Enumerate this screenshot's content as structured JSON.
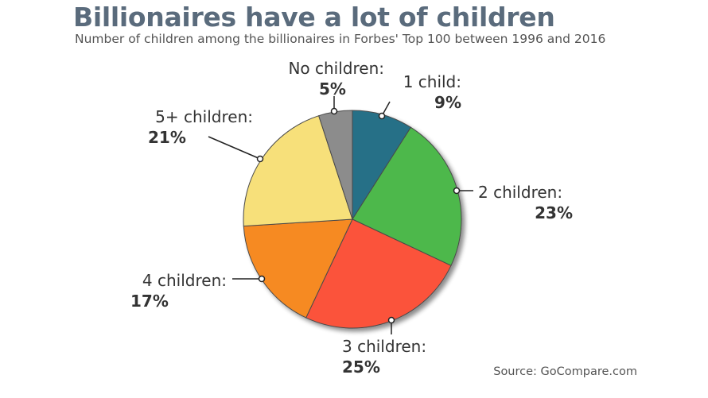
{
  "title": "Billionaires have a lot of children",
  "subtitle": "Number of children among the billionaires in Forbes' Top 100 between 1996 and 2016",
  "source": "Source: GoCompare.com",
  "chart_data": {
    "type": "pie",
    "title": "Billionaires have a lot of children",
    "subtitle": "Number of children among the billionaires in Forbes' Top 100 between 1996 and 2016",
    "slices": [
      {
        "label": "1 child:",
        "value": 9,
        "value_label": "9%",
        "color": "#256f87"
      },
      {
        "label": "2 children:",
        "value": 23,
        "value_label": "23%",
        "color": "#4db84c"
      },
      {
        "label": "3 children:",
        "value": 25,
        "value_label": "25%",
        "color": "#fb533a"
      },
      {
        "label": "4 children:",
        "value": 17,
        "value_label": "17%",
        "color": "#f68a23"
      },
      {
        "label": "5+ children:",
        "value": 21,
        "value_label": "21%",
        "color": "#f7e07a"
      },
      {
        "label": "No children:",
        "value": 5,
        "value_label": "5%",
        "color": "#8c8c8c"
      }
    ]
  }
}
